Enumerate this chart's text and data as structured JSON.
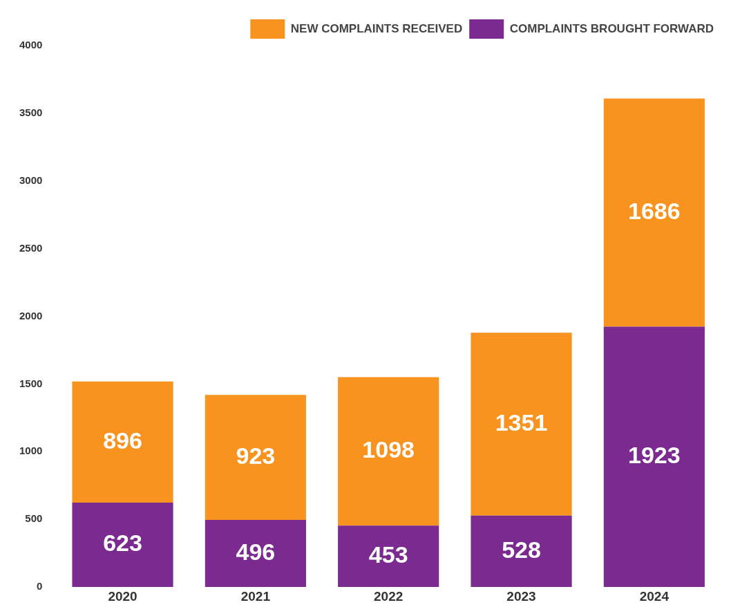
{
  "chart_data": {
    "type": "bar",
    "stacked": true,
    "categories": [
      "2020",
      "2021",
      "2022",
      "2023",
      "2024"
    ],
    "series": [
      {
        "name": "COMPLAINTS BROUGHT FORWARD",
        "color": "#7b2a90",
        "values": [
          623,
          496,
          453,
          528,
          1923
        ]
      },
      {
        "name": "NEW COMPLAINTS RECEIVED",
        "color": "#f7931e",
        "values": [
          896,
          923,
          1098,
          1351,
          1686
        ]
      }
    ],
    "ylim": [
      0,
      4000
    ],
    "yticks": [
      0,
      500,
      1000,
      1500,
      2000,
      2500,
      3000,
      3500,
      4000
    ],
    "grid": false,
    "legend": "top right",
    "data_labels": true
  }
}
